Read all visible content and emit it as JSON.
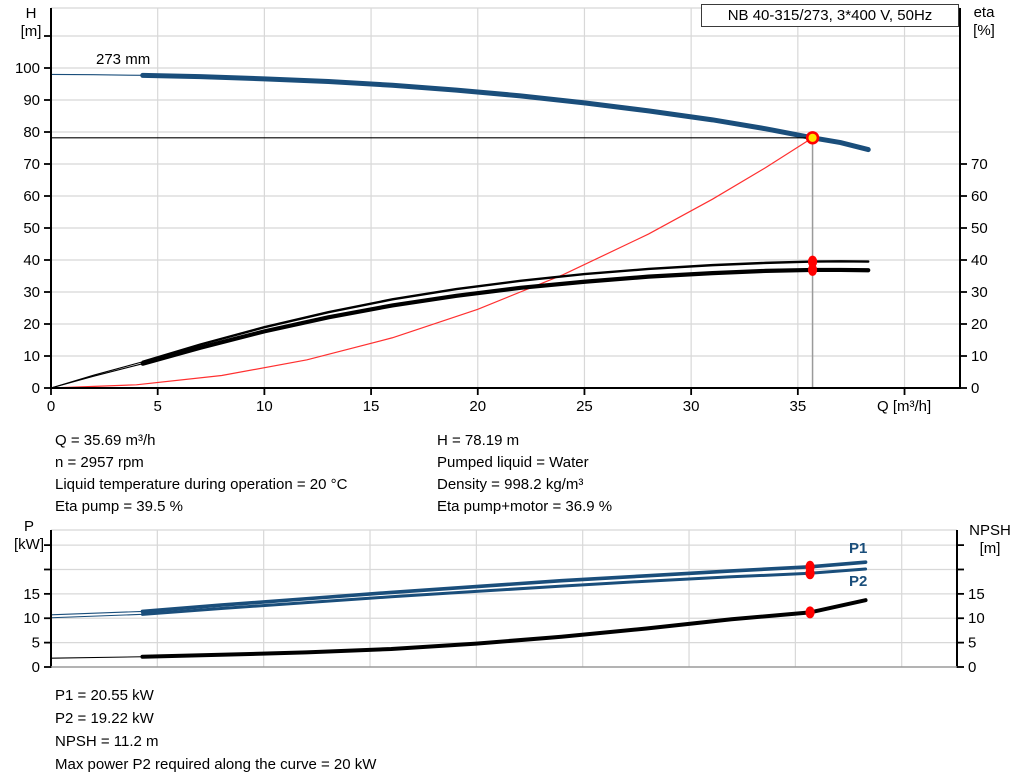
{
  "title_box": "NB 40-315/273, 3*400 V, 50Hz",
  "colors": {
    "curve_blue": "#1a4e7b",
    "system_red": "#ff3030",
    "marker_red": "#ff0000",
    "duty_yellow": "#ffe400",
    "grid_gray": "#d8d8d8",
    "duty_line_gray": "#9a9a9a",
    "black": "#000000"
  },
  "chart_data": [
    {
      "id": "head-eta-chart",
      "type": "line",
      "title": "NB 40-315/273, 3*400 V, 50Hz",
      "x_axis": {
        "label": "Q [m³/h]",
        "ticks": [
          0,
          5,
          10,
          15,
          20,
          25,
          30,
          35
        ],
        "unlabeled_ticks": [
          40
        ],
        "grid": [
          5,
          10,
          15,
          20,
          25,
          30,
          35,
          40
        ],
        "range": [
          0,
          42.6
        ]
      },
      "left_axis": {
        "name": "H",
        "unit": "[m]",
        "ticks": [
          0,
          10,
          20,
          30,
          40,
          50,
          60,
          70,
          80,
          90,
          100
        ],
        "unlabeled_ticks": [
          110
        ],
        "range": [
          0,
          118.75
        ]
      },
      "right_axis": {
        "name": "eta",
        "unit": "[%]",
        "ticks": [
          0,
          10,
          20,
          30,
          40,
          50,
          60,
          70
        ],
        "unlabeled_ticks": [],
        "range": [
          0,
          118.75
        ]
      },
      "h_grid": [
        10,
        20,
        30,
        40,
        50,
        60,
        70,
        80,
        90,
        100,
        110
      ],
      "legend_position": "none",
      "series": [
        {
          "name": "head-curve",
          "label": "273 mm",
          "color": "#1a4e7b",
          "width": 5,
          "thin_until": 4.3,
          "points": [
            [
              0,
              98
            ],
            [
              2,
              97.9
            ],
            [
              4.3,
              97.7
            ],
            [
              7,
              97.3
            ],
            [
              10,
              96.6
            ],
            [
              13,
              95.8
            ],
            [
              16,
              94.6
            ],
            [
              19,
              93.1
            ],
            [
              22,
              91.3
            ],
            [
              25,
              89.1
            ],
            [
              28,
              86.6
            ],
            [
              31,
              83.8
            ],
            [
              33.5,
              81.0
            ],
            [
              35.69,
              78.19
            ],
            [
              37,
              76.7
            ],
            [
              38.3,
              74.5
            ]
          ]
        },
        {
          "name": "system-curve",
          "label": "",
          "color": "#ff3030",
          "width": 1.2,
          "points": [
            [
              0,
              0
            ],
            [
              4,
              1.0
            ],
            [
              8,
              3.9
            ],
            [
              12,
              8.8
            ],
            [
              16,
              15.7
            ],
            [
              20,
              24.6
            ],
            [
              24,
              35.4
            ],
            [
              28,
              48.1
            ],
            [
              31,
              59.0
            ],
            [
              33.5,
              68.9
            ],
            [
              35.69,
              78.19
            ]
          ]
        },
        {
          "name": "eta-pump-curve",
          "label": "",
          "color": "#000000",
          "width": 2.4,
          "thin_until": 4.3,
          "points": [
            [
              0,
              0
            ],
            [
              2,
              4.0
            ],
            [
              4.3,
              8.2
            ],
            [
              7,
              13.6
            ],
            [
              10,
              19.0
            ],
            [
              13,
              23.7
            ],
            [
              16,
              27.7
            ],
            [
              19,
              30.9
            ],
            [
              22,
              33.5
            ],
            [
              25,
              35.6
            ],
            [
              28,
              37.2
            ],
            [
              31,
              38.4
            ],
            [
              33.5,
              39.1
            ],
            [
              35.69,
              39.5
            ],
            [
              37,
              39.6
            ],
            [
              38.3,
              39.5
            ]
          ]
        },
        {
          "name": "eta-pump-motor-curve",
          "label": "",
          "color": "#000000",
          "width": 4.2,
          "thin_until": 4.3,
          "points": [
            [
              0,
              0
            ],
            [
              2,
              3.7
            ],
            [
              4.3,
              7.6
            ],
            [
              7,
              12.6
            ],
            [
              10,
              17.7
            ],
            [
              13,
              22.1
            ],
            [
              16,
              25.8
            ],
            [
              19,
              28.8
            ],
            [
              22,
              31.3
            ],
            [
              25,
              33.2
            ],
            [
              28,
              34.8
            ],
            [
              31,
              35.9
            ],
            [
              33.5,
              36.6
            ],
            [
              35.69,
              36.9
            ],
            [
              37,
              36.9
            ],
            [
              38.3,
              36.8
            ]
          ]
        }
      ],
      "ref_lines": [
        {
          "name": "head-duty-hline",
          "type": "h",
          "v": 78.19,
          "q0": 0,
          "q1": 35.69,
          "color": "#000000",
          "width": 1.2
        },
        {
          "name": "duty-flow-vline",
          "type": "v",
          "q": 35.69,
          "v0": 0,
          "v1": 78.19,
          "color": "#9a9a9a",
          "width": 1.5
        }
      ],
      "markers": [
        {
          "name": "duty-point",
          "q": 35.69,
          "v": 78.19,
          "rx": 5.4,
          "ry": 5.4,
          "fill": "#ffe400",
          "stroke": "#ff0000",
          "sw": 2.6
        },
        {
          "name": "eta-pump-point",
          "q": 35.69,
          "v": 39.5,
          "rx": 4.6,
          "ry": 6,
          "fill": "#ff0000"
        },
        {
          "name": "eta-pump-motor-point",
          "q": 35.69,
          "v": 36.9,
          "rx": 4.6,
          "ry": 6,
          "fill": "#ff0000"
        }
      ]
    },
    {
      "id": "power-npsh-chart",
      "type": "line",
      "title": "",
      "x_axis": {
        "label": "",
        "ticks": [],
        "unlabeled_ticks": [],
        "grid": [
          5,
          10,
          15,
          20,
          25,
          30,
          35,
          40
        ],
        "range": [
          0,
          42.6
        ]
      },
      "left_axis": {
        "name": "P",
        "unit": "[kW]",
        "ticks": [
          0,
          5,
          10,
          15
        ],
        "unlabeled_ticks": [
          20,
          25
        ],
        "range": [
          0,
          28.1
        ]
      },
      "right_axis": {
        "name": "NPSH",
        "unit": "[m]",
        "ticks": [
          0,
          5,
          10,
          15
        ],
        "unlabeled_ticks": [
          20,
          25
        ],
        "range": [
          0,
          28.1
        ]
      },
      "h_grid": [
        5,
        10,
        15,
        20,
        25
      ],
      "legend_position": "inline-right",
      "series": [
        {
          "name": "p1-curve",
          "label": "P1",
          "color": "#1a4e7b",
          "width": 3.6,
          "thin_until": 4.3,
          "points": [
            [
              0,
              10.7
            ],
            [
              4.3,
              11.4
            ],
            [
              8,
              12.7
            ],
            [
              12,
              14.0
            ],
            [
              16,
              15.3
            ],
            [
              20,
              16.5
            ],
            [
              24,
              17.7
            ],
            [
              28,
              18.7
            ],
            [
              32,
              19.7
            ],
            [
              35.69,
              20.55
            ],
            [
              38.3,
              21.5
            ]
          ]
        },
        {
          "name": "p2-curve",
          "label": "P2",
          "color": "#1a4e7b",
          "width": 3,
          "thin_until": 4.3,
          "points": [
            [
              0,
              10.1
            ],
            [
              4.3,
              10.8
            ],
            [
              8,
              12.0
            ],
            [
              12,
              13.2
            ],
            [
              16,
              14.4
            ],
            [
              20,
              15.5
            ],
            [
              24,
              16.6
            ],
            [
              28,
              17.6
            ],
            [
              32,
              18.5
            ],
            [
              35.69,
              19.22
            ],
            [
              38.3,
              20.1
            ]
          ]
        },
        {
          "name": "npsh-curve",
          "label": "",
          "color": "#000000",
          "width": 4,
          "thin_until": 4.3,
          "points": [
            [
              0,
              1.8
            ],
            [
              4.3,
              2.1
            ],
            [
              8,
              2.5
            ],
            [
              12,
              3.0
            ],
            [
              16,
              3.7
            ],
            [
              20,
              4.8
            ],
            [
              24,
              6.2
            ],
            [
              28,
              7.9
            ],
            [
              32,
              9.8
            ],
            [
              35.69,
              11.2
            ],
            [
              38.3,
              13.7
            ]
          ]
        }
      ],
      "ref_lines": [],
      "markers": [
        {
          "name": "p1-point",
          "q": 35.69,
          "v": 20.55,
          "rx": 4.6,
          "ry": 6,
          "fill": "#ff0000"
        },
        {
          "name": "p2-point",
          "q": 35.69,
          "v": 19.22,
          "rx": 4.6,
          "ry": 6,
          "fill": "#ff0000"
        },
        {
          "name": "npsh-point",
          "q": 35.69,
          "v": 11.2,
          "rx": 4.6,
          "ry": 6,
          "fill": "#ff0000"
        }
      ]
    }
  ],
  "curve_labels": {
    "head_diameter": "273 mm",
    "p1": "P1",
    "p2": "P2"
  },
  "summaries": {
    "mid_left": [
      "Q = 35.69 m³/h",
      "n = 2957 rpm",
      "Liquid temperature during operation = 20 °C",
      "Eta pump = 39.5 %"
    ],
    "mid_right": [
      "H = 78.19 m",
      "Pumped liquid = Water",
      "Density = 998.2 kg/m³",
      "Eta pump+motor = 36.9 %"
    ],
    "bottom": [
      "P1 = 20.55 kW",
      "P2 = 19.22 kW",
      "NPSH = 11.2 m",
      "Max power P2 required along the curve = 20 kW"
    ]
  }
}
